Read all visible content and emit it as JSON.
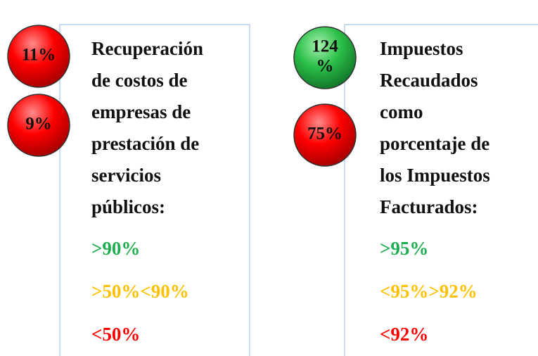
{
  "panels": [
    {
      "indicators": [
        {
          "lines": [
            "11%"
          ],
          "color": "red"
        },
        {
          "lines": [
            "9%"
          ],
          "color": "red"
        }
      ],
      "title": [
        "Recuperación",
        "de costos de",
        "empresas de",
        "prestación de",
        "servicios",
        "públicos:"
      ],
      "thresholds": [
        {
          "text": ">90%",
          "color": "#1fae4f"
        },
        {
          "text": ">50%<90%",
          "color": "#ffc000"
        },
        {
          "text": "<50%",
          "color": "#ff0000"
        }
      ]
    },
    {
      "indicators": [
        {
          "lines": [
            "124",
            "%"
          ],
          "color": "green"
        },
        {
          "lines": [
            "75%"
          ],
          "color": "red"
        }
      ],
      "title": [
        "Impuestos",
        "Recaudados",
        "como",
        "porcentaje de",
        "los Impuestos",
        "Facturados:"
      ],
      "thresholds": [
        {
          "text": ">95%",
          "color": "#1fae4f"
        },
        {
          "text": "<95%>92%",
          "color": "#ffc000"
        },
        {
          "text": "<92%",
          "color": "#ff0000"
        }
      ]
    }
  ]
}
